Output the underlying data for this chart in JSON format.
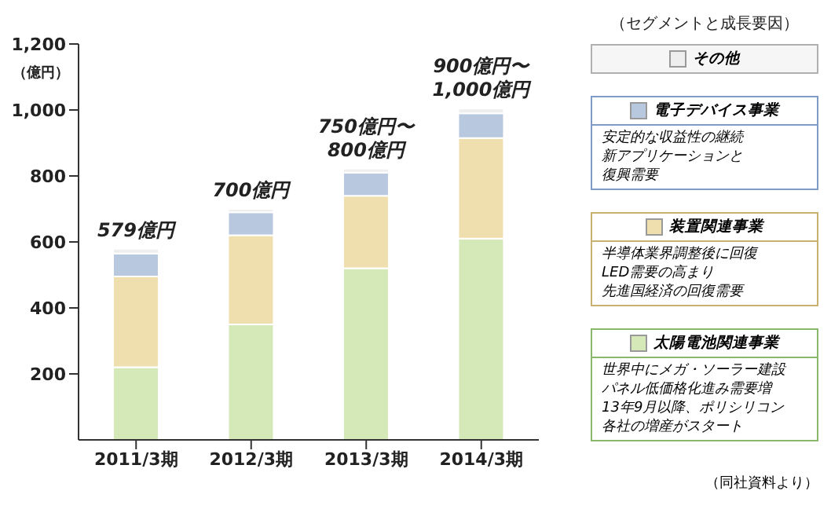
{
  "chart_data": {
    "type": "bar",
    "stacked": true,
    "ylabel": "（億円）",
    "legend_title": "（セグメントと成長要因）",
    "legend": "right",
    "categories": [
      "2011/3期",
      "2012/3期",
      "2013/3期",
      "2014/3期"
    ],
    "series": [
      {
        "name": "太陽電池関連事業",
        "color": "#d5e8b8",
        "values": [
          220,
          350,
          520,
          610
        ]
      },
      {
        "name": "装置関連事業",
        "color": "#f0dfae",
        "values": [
          275,
          270,
          220,
          305
        ]
      },
      {
        "name": "電子デバイス事業",
        "color": "#b8c8de",
        "values": [
          70,
          70,
          70,
          75
        ]
      },
      {
        "name": "その他",
        "color": "#eeeeee",
        "values": [
          14,
          10,
          12,
          14
        ]
      }
    ],
    "totals": [
      "579億円",
      "700億円",
      "750億円〜\n800億円",
      "900億円〜\n1,000億円"
    ],
    "ylim": [
      0,
      1200
    ],
    "yticks": [
      200,
      400,
      600,
      800,
      {
        "value": 1000,
        "label": "1,000"
      },
      {
        "value": 1200,
        "label": "1,200"
      }
    ],
    "annotations": [
      "安定的な収益性の継続",
      "新アプリケーションと",
      "復興需要",
      "半導体業界調整後に回復",
      "LED需要の高まり",
      "先進国経済の回復需要",
      "世界中にメガ・ソーラー建設",
      "パネル低価格化進み需要増",
      "13年9月以降、ポリシリコン",
      "各社の増産がスタート",
      "（同社資料より）"
    ]
  }
}
